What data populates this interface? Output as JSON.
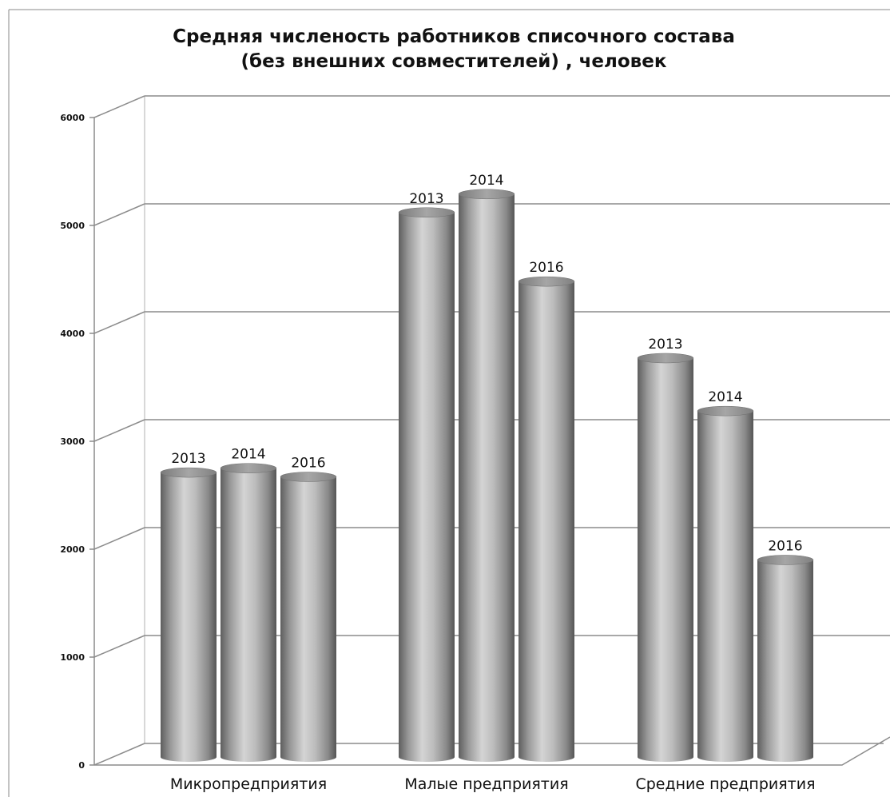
{
  "chart_data": {
    "type": "bar",
    "title": "Средняя численость работников списочного состава (без внешних совместителей) , человек",
    "title_lines": [
      "Средняя численость работников списочного состава",
      "(без внешних совместителей) , человек"
    ],
    "categories": [
      "Микропредприятия",
      "Малые предприятия",
      "Средние предприятия"
    ],
    "series_labels": [
      "2013",
      "2014",
      "2016"
    ],
    "values": [
      [
        2540,
        2580,
        2500
      ],
      [
        4950,
        5120,
        4310
      ],
      [
        3600,
        3110,
        1730
      ]
    ],
    "ylim": [
      0,
      6000
    ],
    "yticks": [
      0,
      1000,
      2000,
      3000,
      4000,
      5000,
      6000
    ],
    "grid": true,
    "style": "3d-cylinder",
    "bar_color": "#a9a9a9"
  }
}
